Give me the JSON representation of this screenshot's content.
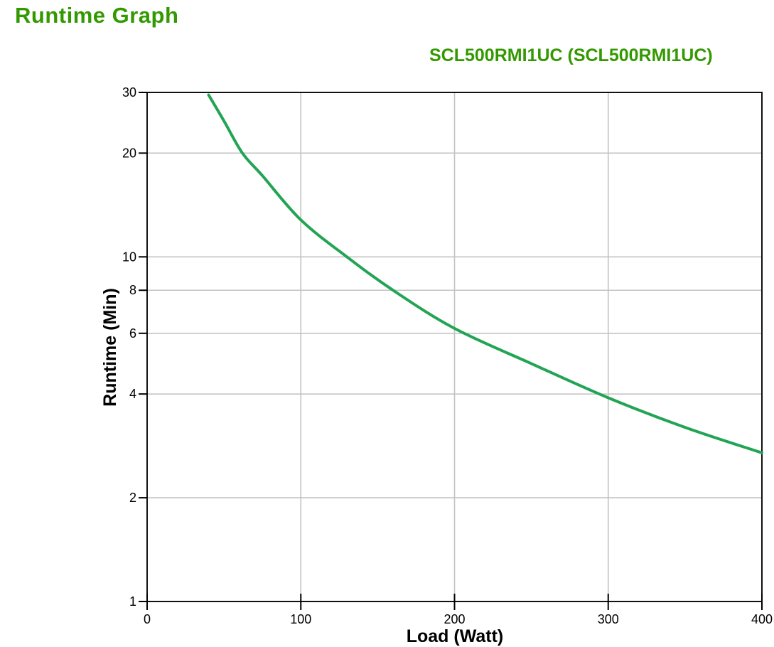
{
  "page": {
    "title": "Runtime Graph",
    "subtitle": "SCL500RMI1UC (SCL500RMI1UC)"
  },
  "colors": {
    "heading_green": "#339900",
    "curve_green": "#23a455",
    "grid_gray": "#c3c3c3",
    "axis_black": "#111111",
    "tick_black": "#000000",
    "background": "#ffffff"
  },
  "chart_data": {
    "type": "line",
    "title": "SCL500RMI1UC (SCL500RMI1UC)",
    "xlabel": "Load (Watt)",
    "ylabel": "Runtime (Min)",
    "x_axis": {
      "min": 0,
      "max": 400,
      "ticks": [
        0,
        100,
        200,
        300,
        400
      ],
      "gridlines": [
        100,
        200,
        300
      ],
      "scale": "linear"
    },
    "y_axis": {
      "min": 1,
      "max": 30,
      "ticks": [
        30,
        20,
        10,
        8,
        6,
        4,
        2,
        1
      ],
      "gridlines": [
        20,
        10,
        8,
        6,
        4,
        2
      ],
      "scale": "log"
    },
    "grid": true,
    "legend": "none",
    "series": [
      {
        "name": "SCL500RMI1UC",
        "points": [
          [
            40,
            29.5
          ],
          [
            50,
            24.8
          ],
          [
            62,
            20
          ],
          [
            75,
            17.2
          ],
          [
            100,
            12.8
          ],
          [
            130,
            10
          ],
          [
            160,
            8
          ],
          [
            200,
            6.2
          ],
          [
            250,
            4.9
          ],
          [
            300,
            3.9
          ],
          [
            350,
            3.2
          ],
          [
            400,
            2.7
          ]
        ]
      }
    ]
  }
}
